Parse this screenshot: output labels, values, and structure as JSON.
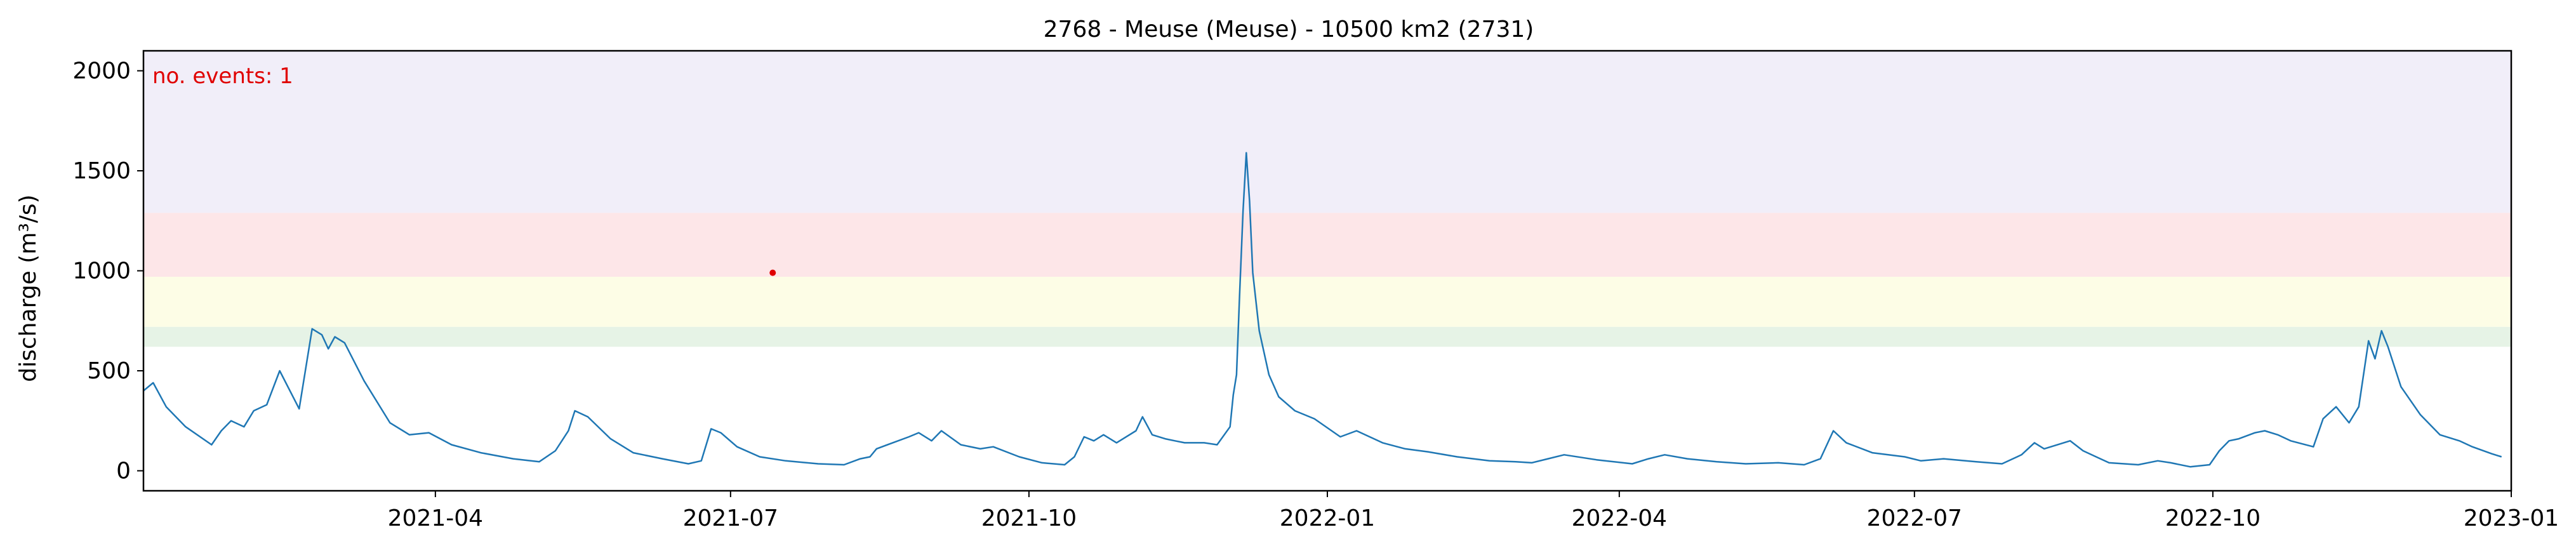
{
  "chart_data": {
    "type": "line",
    "title": "2768 - Meuse (Meuse) - 10500 km2 (2731)",
    "xlabel": "",
    "ylabel": "discharge (m³/s)",
    "xlim": [
      "2021-01-01",
      "2023-01-01"
    ],
    "ylim": [
      -100,
      2100
    ],
    "grid": false,
    "yticks": [
      0,
      500,
      1000,
      1500,
      2000
    ],
    "ytick_labels": [
      "0",
      "500",
      "1000",
      "1500",
      "2000"
    ],
    "xticks": [
      "2021-04-01",
      "2021-07-01",
      "2021-10-01",
      "2022-01-01",
      "2022-04-01",
      "2022-07-01",
      "2022-10-01",
      "2023-01-01"
    ],
    "xtick_labels": [
      "2021-04",
      "2021-07",
      "2021-10",
      "2022-01",
      "2022-04",
      "2022-07",
      "2022-10",
      "2023-01"
    ],
    "threshold_bands": [
      {
        "name": "threshold-band-1",
        "from": 620,
        "to": 720,
        "color": "#e6f3e6"
      },
      {
        "name": "threshold-band-2",
        "from": 720,
        "to": 970,
        "color": "#fdfde6"
      },
      {
        "name": "threshold-band-3",
        "from": 970,
        "to": 1290,
        "color": "#fde6e8"
      },
      {
        "name": "threshold-band-4",
        "from": 1290,
        "to": 2100,
        "color": "#f1eef9"
      }
    ],
    "annotation": {
      "text": "no. events: 1",
      "color": "#e00000",
      "position": "top-left"
    },
    "events": [
      {
        "date": "2021-07-14",
        "value": 990,
        "color": "#e00000"
      }
    ],
    "series": [
      {
        "name": "discharge",
        "color": "#1f77b4",
        "points": [
          [
            "2021-01-01",
            400
          ],
          [
            "2021-01-04",
            440
          ],
          [
            "2021-01-08",
            320
          ],
          [
            "2021-01-14",
            220
          ],
          [
            "2021-01-22",
            130
          ],
          [
            "2021-01-25",
            200
          ],
          [
            "2021-01-28",
            250
          ],
          [
            "2021-02-01",
            220
          ],
          [
            "2021-02-04",
            300
          ],
          [
            "2021-02-08",
            330
          ],
          [
            "2021-02-12",
            500
          ],
          [
            "2021-02-18",
            310
          ],
          [
            "2021-02-22",
            710
          ],
          [
            "2021-02-25",
            680
          ],
          [
            "2021-02-27",
            610
          ],
          [
            "2021-03-01",
            670
          ],
          [
            "2021-03-04",
            640
          ],
          [
            "2021-03-10",
            450
          ],
          [
            "2021-03-18",
            240
          ],
          [
            "2021-03-24",
            180
          ],
          [
            "2021-03-30",
            190
          ],
          [
            "2021-04-06",
            130
          ],
          [
            "2021-04-15",
            90
          ],
          [
            "2021-04-25",
            60
          ],
          [
            "2021-05-03",
            45
          ],
          [
            "2021-05-08",
            100
          ],
          [
            "2021-05-12",
            200
          ],
          [
            "2021-05-14",
            300
          ],
          [
            "2021-05-18",
            270
          ],
          [
            "2021-05-25",
            160
          ],
          [
            "2021-06-01",
            90
          ],
          [
            "2021-06-10",
            60
          ],
          [
            "2021-06-18",
            35
          ],
          [
            "2021-06-22",
            50
          ],
          [
            "2021-06-25",
            210
          ],
          [
            "2021-06-28",
            190
          ],
          [
            "2021-07-03",
            120
          ],
          [
            "2021-07-10",
            70
          ],
          [
            "2021-07-18",
            50
          ],
          [
            "2021-07-28",
            35
          ],
          [
            "2021-08-05",
            30
          ],
          [
            "2021-08-10",
            60
          ],
          [
            "2021-08-13",
            70
          ],
          [
            "2021-08-15",
            110
          ],
          [
            "2021-08-20",
            140
          ],
          [
            "2021-08-25",
            170
          ],
          [
            "2021-08-28",
            190
          ],
          [
            "2021-09-01",
            150
          ],
          [
            "2021-09-04",
            200
          ],
          [
            "2021-09-10",
            130
          ],
          [
            "2021-09-16",
            110
          ],
          [
            "2021-09-20",
            120
          ],
          [
            "2021-09-28",
            70
          ],
          [
            "2021-10-05",
            40
          ],
          [
            "2021-10-12",
            30
          ],
          [
            "2021-10-15",
            70
          ],
          [
            "2021-10-18",
            170
          ],
          [
            "2021-10-21",
            150
          ],
          [
            "2021-10-24",
            180
          ],
          [
            "2021-10-28",
            140
          ],
          [
            "2021-11-03",
            200
          ],
          [
            "2021-11-05",
            270
          ],
          [
            "2021-11-08",
            180
          ],
          [
            "2021-11-12",
            160
          ],
          [
            "2021-11-15",
            150
          ],
          [
            "2021-11-18",
            140
          ],
          [
            "2021-11-24",
            140
          ],
          [
            "2021-11-28",
            130
          ],
          [
            "2021-12-02",
            220
          ],
          [
            "2021-12-03",
            380
          ],
          [
            "2021-12-04",
            480
          ],
          [
            "2021-12-05",
            900
          ],
          [
            "2021-12-06",
            1300
          ],
          [
            "2021-12-07",
            1590
          ],
          [
            "2021-12-08",
            1350
          ],
          [
            "2021-12-09",
            990
          ],
          [
            "2021-12-11",
            700
          ],
          [
            "2021-12-14",
            480
          ],
          [
            "2021-12-17",
            370
          ],
          [
            "2021-12-22",
            300
          ],
          [
            "2021-12-28",
            260
          ],
          [
            "2022-01-05",
            170
          ],
          [
            "2022-01-10",
            200
          ],
          [
            "2022-01-18",
            140
          ],
          [
            "2022-01-25",
            110
          ],
          [
            "2022-02-01",
            95
          ],
          [
            "2022-02-10",
            70
          ],
          [
            "2022-02-20",
            50
          ],
          [
            "2022-02-28",
            45
          ],
          [
            "2022-03-05",
            40
          ],
          [
            "2022-03-10",
            60
          ],
          [
            "2022-03-15",
            80
          ],
          [
            "2022-03-25",
            55
          ],
          [
            "2022-04-05",
            35
          ],
          [
            "2022-04-10",
            60
          ],
          [
            "2022-04-15",
            80
          ],
          [
            "2022-04-22",
            60
          ],
          [
            "2022-05-01",
            45
          ],
          [
            "2022-05-10",
            35
          ],
          [
            "2022-05-20",
            40
          ],
          [
            "2022-05-28",
            30
          ],
          [
            "2022-06-02",
            60
          ],
          [
            "2022-06-06",
            200
          ],
          [
            "2022-06-10",
            140
          ],
          [
            "2022-06-18",
            90
          ],
          [
            "2022-06-28",
            70
          ],
          [
            "2022-07-03",
            50
          ],
          [
            "2022-07-10",
            60
          ],
          [
            "2022-07-20",
            45
          ],
          [
            "2022-07-28",
            35
          ],
          [
            "2022-08-03",
            80
          ],
          [
            "2022-08-07",
            140
          ],
          [
            "2022-08-10",
            110
          ],
          [
            "2022-08-18",
            150
          ],
          [
            "2022-08-22",
            100
          ],
          [
            "2022-08-26",
            70
          ],
          [
            "2022-08-30",
            40
          ],
          [
            "2022-09-08",
            30
          ],
          [
            "2022-09-14",
            50
          ],
          [
            "2022-09-18",
            40
          ],
          [
            "2022-09-24",
            20
          ],
          [
            "2022-09-30",
            30
          ],
          [
            "2022-10-03",
            100
          ],
          [
            "2022-10-06",
            150
          ],
          [
            "2022-10-09",
            160
          ],
          [
            "2022-10-14",
            190
          ],
          [
            "2022-10-17",
            200
          ],
          [
            "2022-10-21",
            180
          ],
          [
            "2022-10-25",
            150
          ],
          [
            "2022-11-01",
            120
          ],
          [
            "2022-11-04",
            260
          ],
          [
            "2022-11-08",
            320
          ],
          [
            "2022-11-12",
            240
          ],
          [
            "2022-11-15",
            320
          ],
          [
            "2022-11-18",
            650
          ],
          [
            "2022-11-20",
            560
          ],
          [
            "2022-11-22",
            700
          ],
          [
            "2022-11-24",
            620
          ],
          [
            "2022-11-28",
            420
          ],
          [
            "2022-12-04",
            280
          ],
          [
            "2022-12-10",
            180
          ],
          [
            "2022-12-16",
            150
          ],
          [
            "2022-12-20",
            120
          ],
          [
            "2022-12-26",
            85
          ],
          [
            "2022-12-29",
            70
          ]
        ]
      }
    ]
  }
}
